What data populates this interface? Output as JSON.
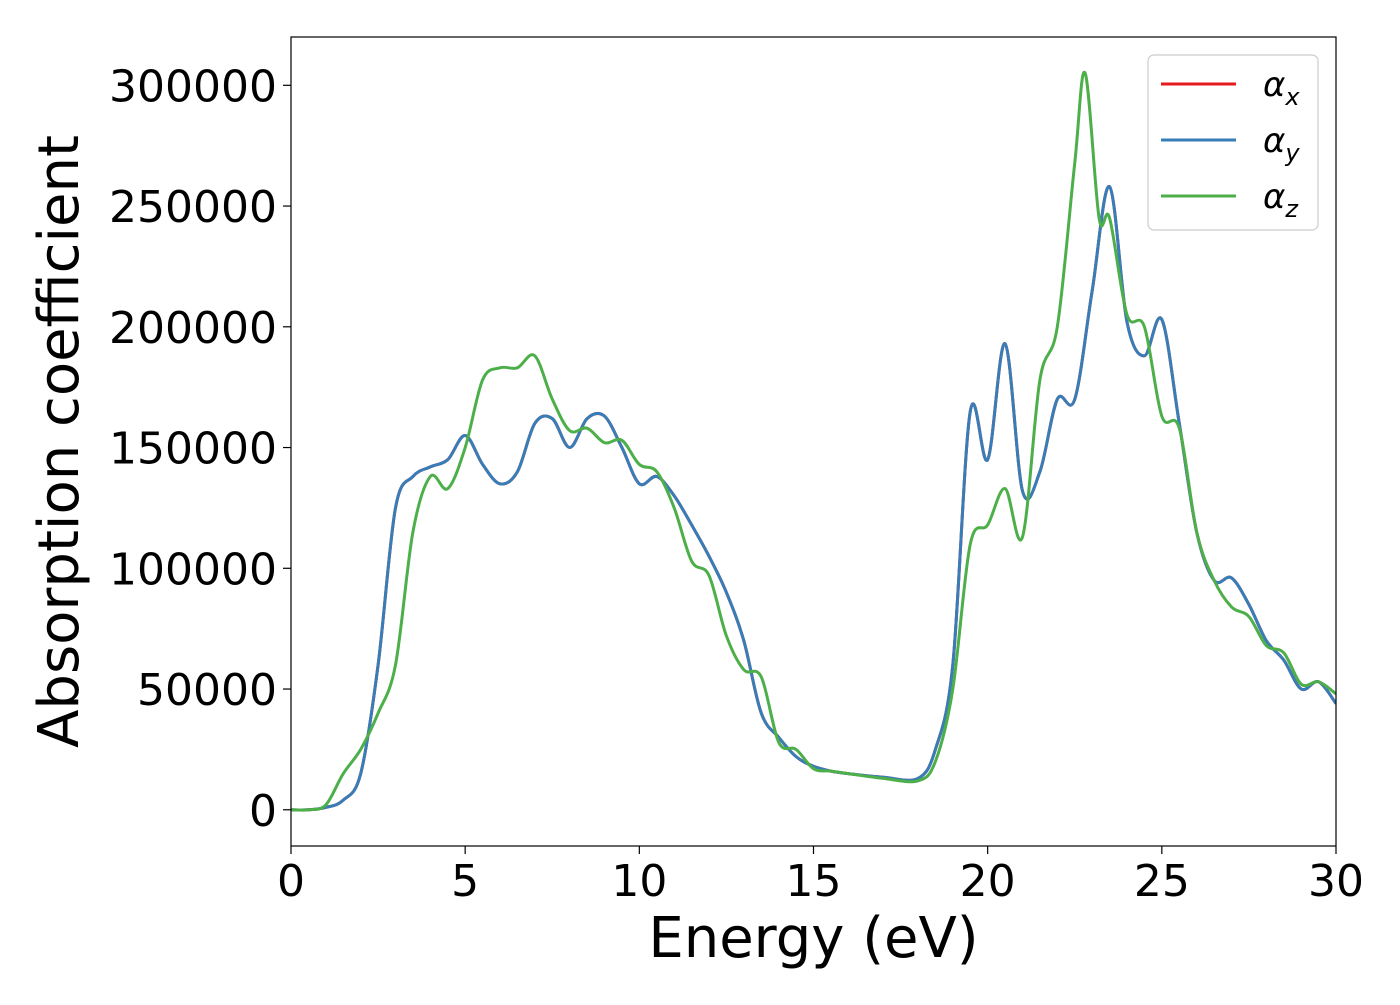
{
  "chart_data": {
    "type": "line",
    "xlabel": "Energy (eV)",
    "ylabel": "Absorption coefficient",
    "xlim": [
      0,
      30
    ],
    "ylim": [
      -15000,
      320000
    ],
    "xticks": [
      0,
      5,
      10,
      15,
      20,
      25,
      30
    ],
    "yticks": [
      0,
      50000,
      100000,
      150000,
      200000,
      250000,
      300000
    ],
    "grid": false,
    "legend_position": "top-right",
    "series": [
      {
        "name": "α_x",
        "symbol": "α",
        "subscript": "x",
        "color": "#e41a1c",
        "x": [
          0,
          0.5,
          1.0,
          1.5,
          2.0,
          2.5,
          3.0,
          3.5,
          4.0,
          4.5,
          5.0,
          5.5,
          6.0,
          6.5,
          7.0,
          7.5,
          8.0,
          8.5,
          9.0,
          9.5,
          10.0,
          10.5,
          11.0,
          11.5,
          12.0,
          12.5,
          13.0,
          13.5,
          14.0,
          14.5,
          15.0,
          15.5,
          16.0,
          17.0,
          18.0,
          18.5,
          19.0,
          19.5,
          20.0,
          20.5,
          21.0,
          21.5,
          22.0,
          22.5,
          23.0,
          23.5,
          24.0,
          24.5,
          25.0,
          25.5,
          26.0,
          26.5,
          27.0,
          27.5,
          28.0,
          28.5,
          29.0,
          29.5,
          30.0
        ],
        "y": [
          0,
          0,
          1000,
          4000,
          15000,
          60000,
          125000,
          138000,
          142000,
          145000,
          155000,
          143000,
          135000,
          140000,
          160000,
          162000,
          150000,
          162000,
          163000,
          150000,
          135000,
          138000,
          130000,
          118000,
          105000,
          90000,
          70000,
          40000,
          30000,
          22000,
          18000,
          16000,
          15000,
          13500,
          13000,
          25000,
          60000,
          165000,
          145000,
          193000,
          132000,
          140000,
          170000,
          170000,
          215000,
          258000,
          202000,
          188000,
          203000,
          160000,
          115000,
          95000,
          96000,
          85000,
          70000,
          62000,
          50000,
          53000,
          44000
        ]
      },
      {
        "name": "α_y",
        "symbol": "α",
        "subscript": "y",
        "color": "#377eb8",
        "x": [
          0,
          0.5,
          1.0,
          1.5,
          2.0,
          2.5,
          3.0,
          3.5,
          4.0,
          4.5,
          5.0,
          5.5,
          6.0,
          6.5,
          7.0,
          7.5,
          8.0,
          8.5,
          9.0,
          9.5,
          10.0,
          10.5,
          11.0,
          11.5,
          12.0,
          12.5,
          13.0,
          13.5,
          14.0,
          14.5,
          15.0,
          15.5,
          16.0,
          17.0,
          18.0,
          18.5,
          19.0,
          19.5,
          20.0,
          20.5,
          21.0,
          21.5,
          22.0,
          22.5,
          23.0,
          23.5,
          24.0,
          24.5,
          25.0,
          25.5,
          26.0,
          26.5,
          27.0,
          27.5,
          28.0,
          28.5,
          29.0,
          29.5,
          30.0
        ],
        "y": [
          0,
          0,
          1000,
          4000,
          15000,
          60000,
          125000,
          138000,
          142000,
          145000,
          155000,
          143000,
          135000,
          140000,
          160000,
          162000,
          150000,
          162000,
          163000,
          150000,
          135000,
          138000,
          130000,
          118000,
          105000,
          90000,
          70000,
          40000,
          30000,
          22000,
          18000,
          16000,
          15000,
          13500,
          13000,
          25000,
          60000,
          165000,
          145000,
          193000,
          132000,
          140000,
          170000,
          170000,
          215000,
          258000,
          202000,
          188000,
          203000,
          160000,
          115000,
          95000,
          96000,
          85000,
          70000,
          62000,
          50000,
          53000,
          44000
        ]
      },
      {
        "name": "α_z",
        "symbol": "α",
        "subscript": "z",
        "color": "#4daf4a",
        "x": [
          0,
          0.5,
          1.0,
          1.5,
          2.0,
          2.5,
          3.0,
          3.5,
          4.0,
          4.5,
          5.0,
          5.5,
          6.0,
          6.5,
          7.0,
          7.5,
          8.0,
          8.5,
          9.0,
          9.5,
          10.0,
          10.5,
          11.0,
          11.5,
          12.0,
          12.5,
          13.0,
          13.5,
          14.0,
          14.5,
          15.0,
          15.5,
          16.0,
          17.0,
          18.0,
          18.5,
          19.0,
          19.5,
          20.0,
          20.5,
          21.0,
          21.5,
          22.0,
          22.5,
          22.8,
          23.2,
          23.5,
          24.0,
          24.5,
          25.0,
          25.5,
          26.0,
          26.5,
          27.0,
          27.5,
          28.0,
          28.5,
          29.0,
          29.5,
          30.0
        ],
        "y": [
          0,
          0,
          2000,
          15000,
          25000,
          40000,
          60000,
          115000,
          138000,
          133000,
          150000,
          178000,
          183000,
          183000,
          188000,
          170000,
          157000,
          158000,
          152000,
          153000,
          143000,
          140000,
          125000,
          103000,
          97000,
          72000,
          58000,
          55000,
          28000,
          25000,
          17000,
          16000,
          15000,
          13000,
          12000,
          20000,
          50000,
          110000,
          118000,
          133000,
          113000,
          178000,
          200000,
          268000,
          305000,
          245000,
          245000,
          205000,
          200000,
          163000,
          158000,
          115000,
          95000,
          84000,
          80000,
          68000,
          65000,
          52000,
          53000,
          48000
        ]
      }
    ]
  }
}
